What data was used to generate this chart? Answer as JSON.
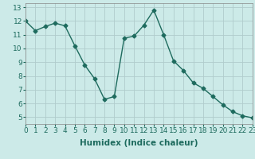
{
  "x": [
    0,
    1,
    2,
    3,
    4,
    5,
    6,
    7,
    8,
    9,
    10,
    11,
    12,
    13,
    14,
    15,
    16,
    17,
    18,
    19,
    20,
    21,
    22,
    23
  ],
  "y": [
    12.0,
    11.3,
    11.6,
    11.85,
    11.65,
    10.2,
    8.8,
    7.8,
    6.3,
    6.5,
    10.75,
    10.9,
    11.7,
    12.8,
    11.0,
    9.1,
    8.4,
    7.5,
    7.1,
    6.5,
    5.9,
    5.4,
    5.1,
    4.95
  ],
  "line_color": "#1e6b5e",
  "bg_color": "#cceae8",
  "grid_color": "#b0cccc",
  "xlabel": "Humidex (Indice chaleur)",
  "ylim": [
    4.5,
    13.3
  ],
  "yticks": [
    5,
    6,
    7,
    8,
    9,
    10,
    11,
    12,
    13
  ],
  "xticks": [
    0,
    1,
    2,
    3,
    4,
    5,
    6,
    7,
    8,
    9,
    10,
    11,
    12,
    13,
    14,
    15,
    16,
    17,
    18,
    19,
    20,
    21,
    22,
    23
  ],
  "xlim": [
    0,
    23
  ],
  "marker": "D",
  "marker_size": 2.5,
  "line_width": 1.0,
  "xlabel_fontsize": 7.5,
  "tick_fontsize": 6.5
}
